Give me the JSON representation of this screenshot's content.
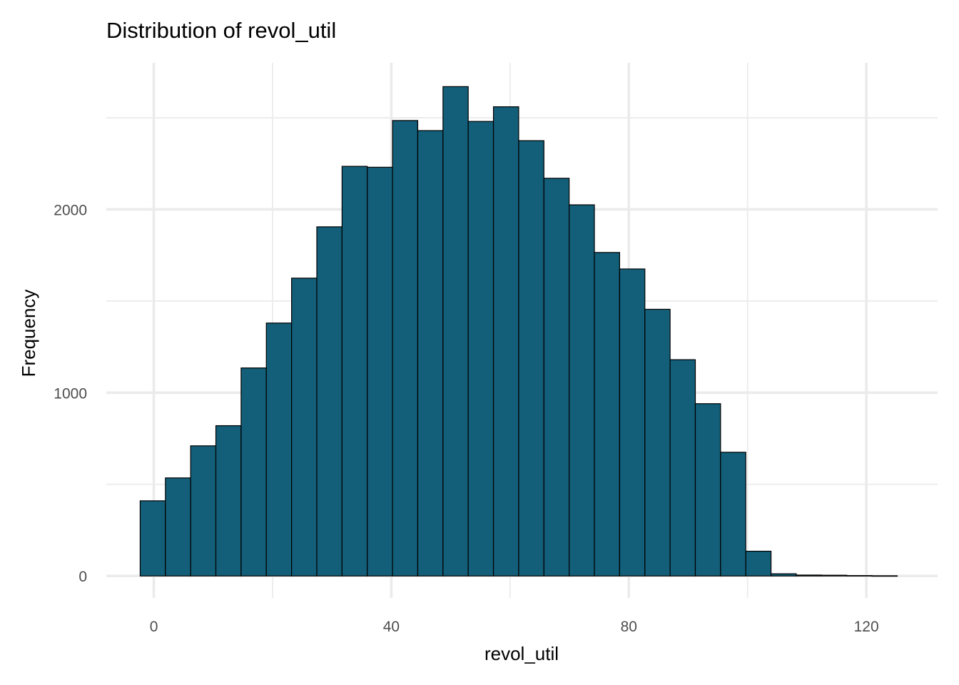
{
  "chart_data": {
    "type": "bar",
    "title": "Distribution of revol_util",
    "xlabel": "revol_util",
    "ylabel": "Frequency",
    "bar_color": "#135e78",
    "bar_border_color": "#000000",
    "grid": true,
    "xlim": [
      -8,
      132
    ],
    "ylim": [
      -120,
      2800
    ],
    "x_ticks": [
      0,
      40,
      80,
      120
    ],
    "y_ticks": [
      0,
      1000,
      2000
    ],
    "x_minor_ticks": [
      20,
      60,
      100
    ],
    "y_minor_ticks": [
      500,
      1500,
      2500
    ],
    "bin_width": 4.25,
    "bins": [
      {
        "x0": -2.3,
        "x1": 1.95,
        "count": 410
      },
      {
        "x0": 1.95,
        "x1": 6.2,
        "count": 535
      },
      {
        "x0": 6.2,
        "x1": 10.45,
        "count": 710
      },
      {
        "x0": 10.45,
        "x1": 14.7,
        "count": 820
      },
      {
        "x0": 14.7,
        "x1": 18.95,
        "count": 1135
      },
      {
        "x0": 18.95,
        "x1": 23.2,
        "count": 1380
      },
      {
        "x0": 23.2,
        "x1": 27.45,
        "count": 1625
      },
      {
        "x0": 27.45,
        "x1": 31.7,
        "count": 1905
      },
      {
        "x0": 31.7,
        "x1": 35.95,
        "count": 2235
      },
      {
        "x0": 35.95,
        "x1": 40.2,
        "count": 2230
      },
      {
        "x0": 40.2,
        "x1": 44.45,
        "count": 2485
      },
      {
        "x0": 44.45,
        "x1": 48.7,
        "count": 2430
      },
      {
        "x0": 48.7,
        "x1": 52.95,
        "count": 2670
      },
      {
        "x0": 52.95,
        "x1": 57.2,
        "count": 2480
      },
      {
        "x0": 57.2,
        "x1": 61.45,
        "count": 2560
      },
      {
        "x0": 61.45,
        "x1": 65.7,
        "count": 2375
      },
      {
        "x0": 65.7,
        "x1": 69.95,
        "count": 2170
      },
      {
        "x0": 69.95,
        "x1": 74.2,
        "count": 2025
      },
      {
        "x0": 74.2,
        "x1": 78.45,
        "count": 1765
      },
      {
        "x0": 78.45,
        "x1": 82.7,
        "count": 1675
      },
      {
        "x0": 82.7,
        "x1": 86.95,
        "count": 1455
      },
      {
        "x0": 86.95,
        "x1": 91.2,
        "count": 1180
      },
      {
        "x0": 91.2,
        "x1": 95.45,
        "count": 940
      },
      {
        "x0": 95.45,
        "x1": 99.7,
        "count": 675
      },
      {
        "x0": 99.7,
        "x1": 103.95,
        "count": 135
      },
      {
        "x0": 103.95,
        "x1": 108.2,
        "count": 12
      },
      {
        "x0": 108.2,
        "x1": 112.45,
        "count": 5
      },
      {
        "x0": 112.45,
        "x1": 116.7,
        "count": 4
      },
      {
        "x0": 116.7,
        "x1": 120.95,
        "count": 2
      },
      {
        "x0": 120.95,
        "x1": 125.2,
        "count": 1
      }
    ]
  }
}
